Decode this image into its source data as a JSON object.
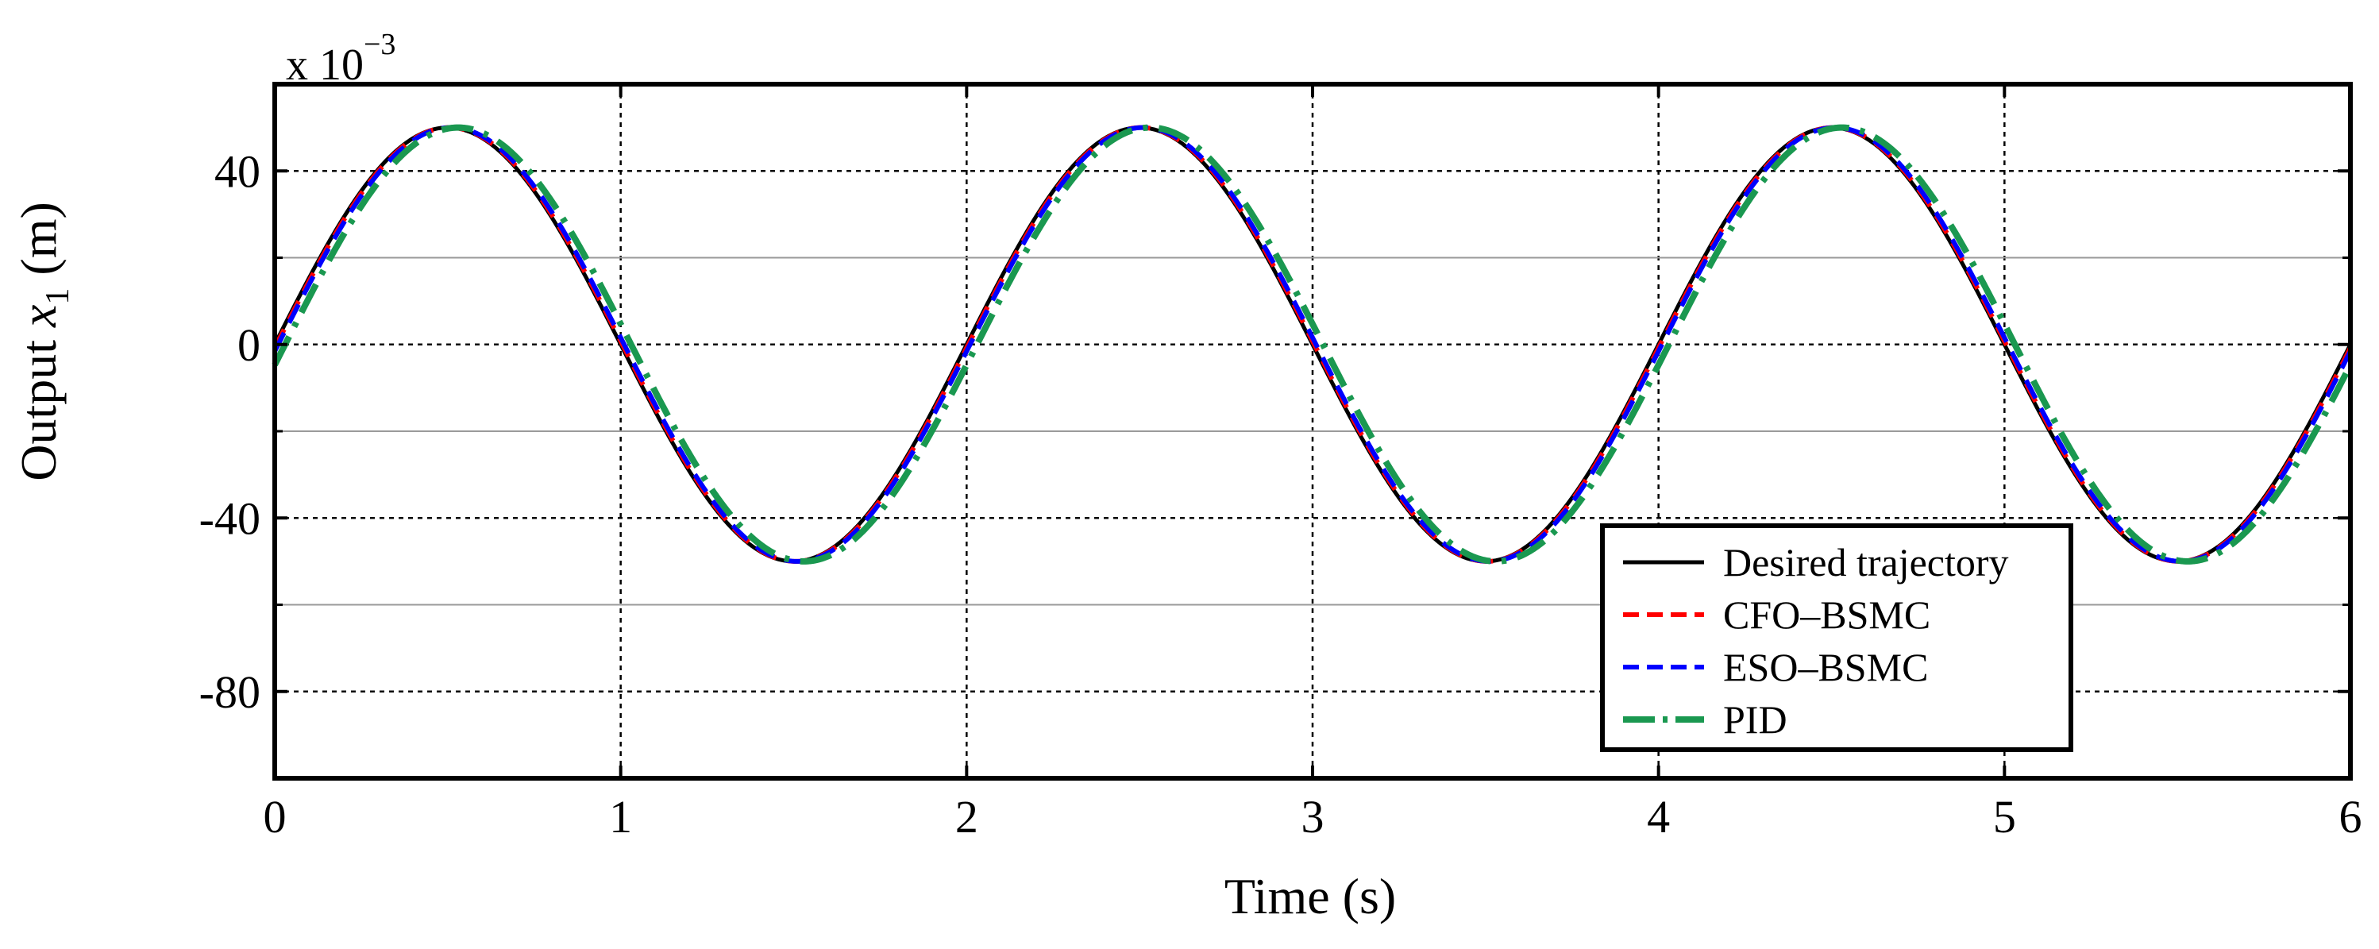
{
  "chart_data": {
    "type": "line",
    "xlabel": {
      "prefix": "Time (s)"
    },
    "ylabel": {
      "prefix": "Output ",
      "var": "x",
      "sub": "1",
      "suffix": " (m)"
    },
    "y_multiplier": {
      "base": "x 10",
      "exponent": "−3"
    },
    "xlim": [
      0,
      6
    ],
    "ylim": [
      -100,
      60
    ],
    "x_ticks": [
      0,
      1,
      2,
      3,
      4,
      5,
      6
    ],
    "x_tick_labels": [
      "0",
      "1",
      "2",
      "3",
      "4",
      "5",
      "6"
    ],
    "y_ticks": [
      40,
      0,
      -40,
      -80
    ],
    "y_tick_labels": [
      "40",
      "0",
      "-40",
      "-80"
    ],
    "y_minor_grid": [
      20,
      -20,
      -60
    ],
    "grid": true,
    "legend_position": "bottom-right",
    "series": [
      {
        "name": "Desired trajectory",
        "color": "#000000",
        "style": "solid",
        "amplitude": 50,
        "period": 2,
        "phase_shift": 0,
        "x": [
          0,
          0.5,
          1,
          1.5,
          2,
          2.5,
          3,
          3.5,
          4,
          4.5,
          5,
          5.5,
          6
        ],
        "y": [
          0,
          50,
          0,
          -50,
          0,
          50,
          0,
          -50,
          0,
          50,
          0,
          -50,
          0
        ]
      },
      {
        "name": "CFO–BSMC",
        "color": "#ff0000",
        "style": "dashed",
        "amplitude": 50,
        "period": 2,
        "phase_shift": 0.005,
        "x": [
          0,
          0.5,
          1,
          1.5,
          2,
          2.5,
          3,
          3.5,
          4,
          4.5,
          5,
          5.5,
          6
        ],
        "y": [
          0,
          50,
          0,
          -50,
          0,
          50,
          0,
          -50,
          0,
          50,
          0,
          -50,
          0
        ]
      },
      {
        "name": "ESO–BSMC",
        "color": "#0000ff",
        "style": "dashed",
        "amplitude": 50,
        "period": 2,
        "phase_shift": 0.01,
        "x": [
          0,
          0.5,
          1,
          1.5,
          2,
          2.5,
          3,
          3.5,
          4,
          4.5,
          5,
          5.5,
          6
        ],
        "y": [
          0,
          50,
          0,
          -50,
          0,
          50,
          0,
          -50,
          0,
          50,
          0,
          -50,
          0
        ]
      },
      {
        "name": "PID",
        "color": "#1a9850",
        "style": "dashdot",
        "amplitude": 50,
        "period": 2,
        "phase_shift": 0.03,
        "x": [
          0,
          0.5,
          1,
          1.5,
          2,
          2.5,
          3,
          3.5,
          4,
          4.5,
          5,
          5.5,
          6
        ],
        "y": [
          0,
          50,
          0,
          -50,
          0,
          50,
          0,
          -50,
          0,
          50,
          0,
          -50,
          0
        ]
      }
    ]
  }
}
